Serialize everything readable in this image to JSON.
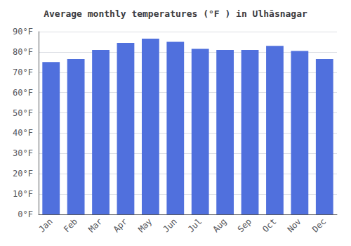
{
  "chart_data": {
    "type": "bar",
    "title": "Average monthly temperatures (°F ) in Ulhāsnagar",
    "categories": [
      "Jan",
      "Feb",
      "Mar",
      "Apr",
      "May",
      "Jun",
      "Jul",
      "Aug",
      "Sep",
      "Oct",
      "Nov",
      "Dec"
    ],
    "values": [
      75,
      76.5,
      81,
      84.5,
      86.5,
      85,
      81.5,
      81,
      81,
      83,
      80.5,
      76.5
    ],
    "ylim": [
      0,
      90
    ],
    "yticks": [
      {
        "value": 0,
        "label": "0°F"
      },
      {
        "value": 10,
        "label": "10°F"
      },
      {
        "value": 20,
        "label": "20°F"
      },
      {
        "value": 30,
        "label": "30°F"
      },
      {
        "value": 40,
        "label": "40°F"
      },
      {
        "value": 50,
        "label": "50°F"
      },
      {
        "value": 60,
        "label": "60°F"
      },
      {
        "value": 70,
        "label": "70°F"
      },
      {
        "value": 80,
        "label": "80°F"
      },
      {
        "value": 90,
        "label": "90°F"
      }
    ],
    "grid": true
  }
}
